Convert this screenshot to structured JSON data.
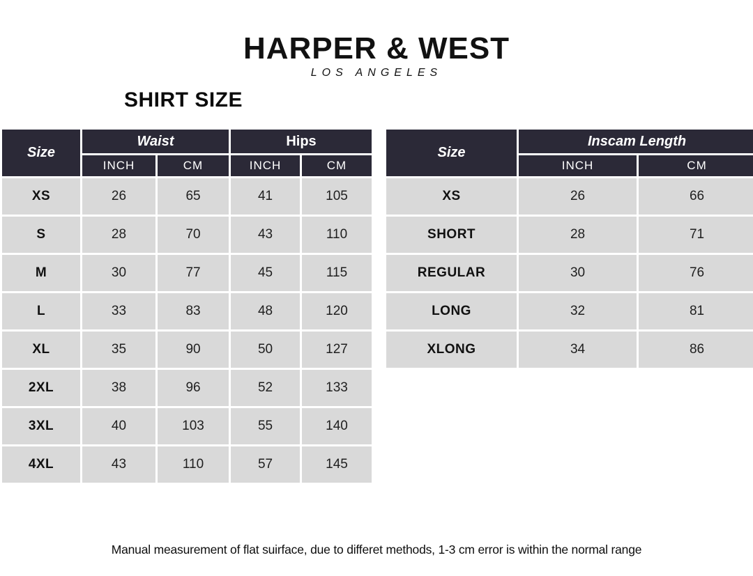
{
  "brand": {
    "name": "HARPER & WEST",
    "subtitle": "LOS ANGELES"
  },
  "page_title": "SHIRT SIZE",
  "colors": {
    "header_bg": "#2b2937",
    "row_bg": "#d9d9d9",
    "paper": "#ffffff"
  },
  "size_table": {
    "size_header": "Size",
    "group_headers": [
      "Waist",
      "Hips"
    ],
    "unit_headers": [
      "INCH",
      "CM",
      "INCH",
      "CM"
    ],
    "rows": [
      {
        "size": "XS",
        "values": [
          "26",
          "65",
          "41",
          "105"
        ]
      },
      {
        "size": "S",
        "values": [
          "28",
          "70",
          "43",
          "110"
        ]
      },
      {
        "size": "M",
        "values": [
          "30",
          "77",
          "45",
          "115"
        ]
      },
      {
        "size": "L",
        "values": [
          "33",
          "83",
          "48",
          "120"
        ]
      },
      {
        "size": "XL",
        "values": [
          "35",
          "90",
          "50",
          "127"
        ]
      },
      {
        "size": "2XL",
        "values": [
          "38",
          "96",
          "52",
          "133"
        ]
      },
      {
        "size": "3XL",
        "values": [
          "40",
          "103",
          "55",
          "140"
        ]
      },
      {
        "size": "4XL",
        "values": [
          "43",
          "110",
          "57",
          "145"
        ]
      }
    ]
  },
  "inseam_table": {
    "size_header": "Size",
    "group_header": "Inscam Length",
    "unit_headers": [
      "INCH",
      "CM"
    ],
    "rows": [
      {
        "size": "XS",
        "values": [
          "26",
          "66"
        ]
      },
      {
        "size": "SHORT",
        "values": [
          "28",
          "71"
        ]
      },
      {
        "size": "REGULAR",
        "values": [
          "30",
          "76"
        ]
      },
      {
        "size": "LONG",
        "values": [
          "32",
          "81"
        ]
      },
      {
        "size": "XLONG",
        "values": [
          "34",
          "86"
        ]
      }
    ]
  },
  "footnote": "Manual measurement of flat suirface, due to differet methods, 1-3 cm error is within the normal range"
}
